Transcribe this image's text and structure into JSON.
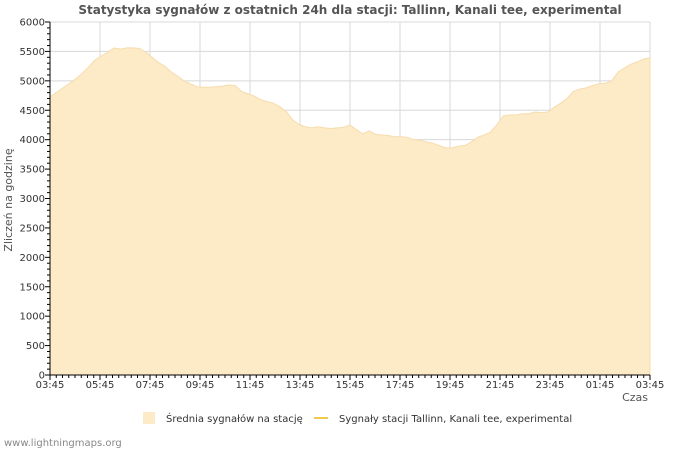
{
  "chart_data": {
    "type": "area",
    "title": "Statystyka sygnałów z ostatnich 24h dla stacji: Tallinn, Kanali tee, experimental",
    "xlabel": "Czas",
    "ylabel": "Zliczeń na godzinę",
    "ylim": [
      0,
      6000
    ],
    "yticks": [
      0,
      500,
      1000,
      1500,
      2000,
      2500,
      3000,
      3500,
      4000,
      4500,
      5000,
      5500,
      6000
    ],
    "xticks": [
      "03:45",
      "05:45",
      "07:45",
      "09:45",
      "11:45",
      "13:45",
      "15:45",
      "17:45",
      "19:45",
      "21:45",
      "23:45",
      "01:45",
      "03:45"
    ],
    "grid": true,
    "legend_position": "bottom",
    "colors": {
      "area_fill": "#fcebc6",
      "area_edge": "#f6dcae",
      "station_line": "#f2c94c",
      "grid": "#d8d8d8",
      "axis": "#000000"
    },
    "series": [
      {
        "name": "Średnia sygnałów na stację",
        "kind": "area",
        "x_step_minutes": 15,
        "values": [
          4730,
          4800,
          4880,
          4950,
          5030,
          5120,
          5230,
          5350,
          5420,
          5480,
          5560,
          5540,
          5560,
          5560,
          5550,
          5490,
          5400,
          5310,
          5250,
          5150,
          5080,
          5000,
          4950,
          4900,
          4890,
          4890,
          4900,
          4910,
          4930,
          4920,
          4820,
          4780,
          4740,
          4680,
          4650,
          4620,
          4560,
          4480,
          4340,
          4260,
          4220,
          4200,
          4220,
          4200,
          4190,
          4200,
          4210,
          4250,
          4170,
          4100,
          4150,
          4090,
          4080,
          4070,
          4050,
          4050,
          4040,
          4000,
          3990,
          3960,
          3940,
          3900,
          3860,
          3860,
          3890,
          3900,
          3960,
          4040,
          4080,
          4130,
          4250,
          4400,
          4420,
          4420,
          4440,
          4440,
          4470,
          4460,
          4470,
          4550,
          4620,
          4700,
          4820,
          4860,
          4880,
          4920,
          4950,
          4960,
          5000,
          5150,
          5220,
          5280,
          5320,
          5370,
          5390
        ]
      },
      {
        "name": "Sygnały stacji Tallinn, Kanali tee, experimental",
        "kind": "line",
        "values": []
      }
    ]
  },
  "footer": "www.lightningmaps.org"
}
